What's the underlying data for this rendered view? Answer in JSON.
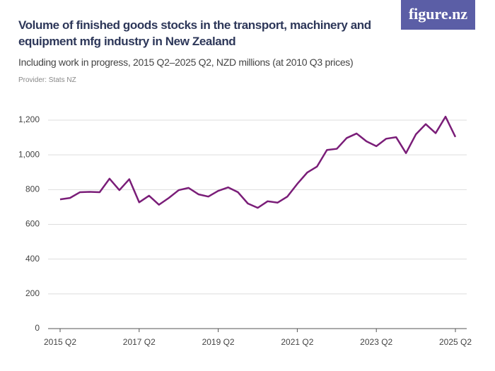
{
  "logo": "figure.nz",
  "chart_data": {
    "type": "line",
    "title": "Volume of finished goods stocks in the transport, machinery and equipment mfg industry in New Zealand",
    "subtitle": "Including work in progress, 2015 Q2–2025 Q2, NZD millions (at 2010 Q3 prices)",
    "provider": "Provider: Stats NZ",
    "categories": [
      "2015 Q2",
      null,
      null,
      null,
      null,
      null,
      null,
      null,
      "2017 Q2",
      null,
      null,
      null,
      null,
      null,
      null,
      null,
      "2019 Q2",
      null,
      null,
      null,
      null,
      null,
      null,
      null,
      "2021 Q2",
      null,
      null,
      null,
      null,
      null,
      null,
      null,
      "2023 Q2",
      null,
      null,
      null,
      null,
      null,
      null,
      null,
      "2025 Q2"
    ],
    "values": [
      744,
      752,
      785,
      787,
      785,
      863,
      797,
      860,
      727,
      765,
      713,
      752,
      797,
      810,
      773,
      760,
      793,
      813,
      785,
      720,
      695,
      733,
      725,
      760,
      833,
      898,
      933,
      1028,
      1035,
      1097,
      1123,
      1078,
      1050,
      1093,
      1102,
      1010,
      1118,
      1177,
      1125,
      1220,
      1103
    ],
    "color": "#7a1d78",
    "ylim": [
      0,
      1200
    ],
    "yticks": [
      0,
      200,
      400,
      600,
      800,
      {
        "value": 1000,
        "label": "1,000"
      },
      {
        "value": 1200,
        "label": "1,200"
      }
    ],
    "grid": true
  }
}
